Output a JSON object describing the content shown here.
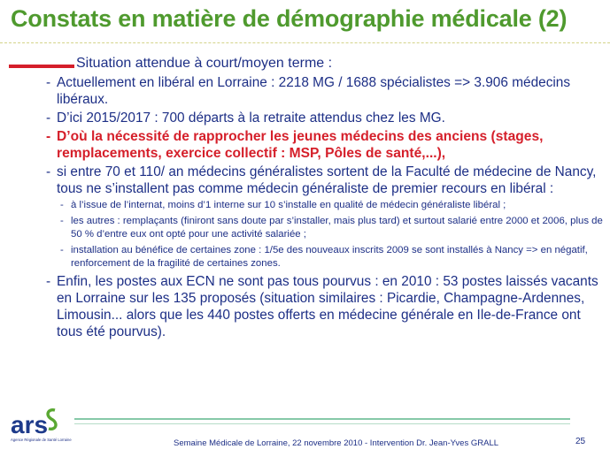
{
  "title": "Constats en matière de démographie médicale (2)",
  "lead": "Situation attendue à court/moyen terme :",
  "items": [
    {
      "text": "Actuellement en libéral en Lorraine : 2218 MG / 1688 spécialistes => 3.906 médecins libéraux."
    },
    {
      "text": "D’ici 2015/2017 : 700 départs à la retraite attendus chez les MG."
    },
    {
      "text": "D’où la nécessité de rapprocher les jeunes médecins des anciens (stages, remplacements, exercice collectif : MSP, Pôles de santé,...),"
    },
    {
      "text": "si entre 70 et 110/ an médecins généralistes sortent de la Faculté de médecine de Nancy, tous ne s’installent pas comme médecin généraliste de premier recours en libéral :"
    },
    {
      "text": "Enfin, les postes aux ECN ne sont pas tous pourvus : en 2010 : 53 postes laissés vacants en Lorraine sur les 135 proposés (situation similaires : Picardie, Champagne-Ardennes, Limousin... alors que les 440 postes offerts en médecine générale en Ile-de-France ont tous été pourvus)."
    }
  ],
  "subitems": [
    {
      "text": "à l’issue de l’internat, moins d’1 interne sur 10 s’installe en qualité de médecin généraliste libéral ;"
    },
    {
      "text": "les autres : remplaçants (finiront sans doute par s’installer, mais plus tard) et surtout salarié entre 2000 et 2006, plus de 50 % d’entre eux ont opté pour une activité salariée ;"
    },
    {
      "text": "installation au bénéfice de certaines zone : 1/5e des nouveaux inscrits 2009 se sont installés à Nancy => en négatif, renforcement de la fragilité de certaines zones."
    }
  ],
  "footer": "Semaine Médicale de Lorraine, 22 novembre 2010 - Intervention Dr. Jean-Yves GRALL",
  "page_number": "25",
  "logo": {
    "text": "ars",
    "tagline": "Agence Régionale de Santé Lorraine"
  },
  "colors": {
    "title": "#4f9a2e",
    "body": "#1d2f86",
    "highlight": "#d51f2a",
    "logo_blue": "#1d3a8a",
    "logo_green": "#5aa832"
  }
}
